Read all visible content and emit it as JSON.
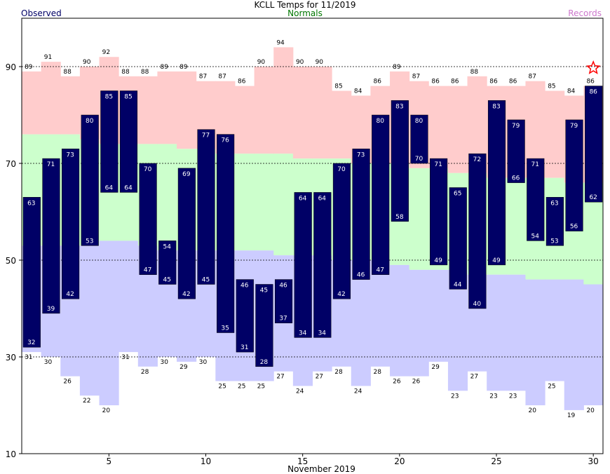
{
  "colors": {
    "observed": "#000066",
    "normals": "#007700",
    "records": "#cc77cc",
    "record_high_fill": "#ffcccc",
    "normal_fill": "#ccffcc",
    "record_low_fill": "#ccccff",
    "bar_label": "#ffffff",
    "star": "#ff0000"
  },
  "chart_data": {
    "type": "bar",
    "title": "KCLL Temps for 11/2019",
    "legend": {
      "observed": "Observed",
      "normals": "Normals",
      "records": "Records",
      "placement": "top"
    },
    "xlabel": "November 2019",
    "ylabel": "",
    "xlim": [
      0.5,
      30.5
    ],
    "ylim": [
      10,
      100
    ],
    "x_ticks": [
      5,
      10,
      15,
      20,
      25,
      30
    ],
    "y_ticks": [
      10,
      30,
      50,
      70,
      90
    ],
    "dashed_gridlines": [
      30,
      50,
      70,
      90
    ],
    "days": [
      1,
      2,
      3,
      4,
      5,
      6,
      7,
      8,
      9,
      10,
      11,
      12,
      13,
      14,
      15,
      16,
      17,
      18,
      19,
      20,
      21,
      22,
      23,
      24,
      25,
      26,
      27,
      28,
      29,
      30
    ],
    "observed_high": [
      63,
      71,
      73,
      80,
      85,
      85,
      70,
      54,
      69,
      77,
      76,
      46,
      45,
      46,
      64,
      64,
      70,
      73,
      80,
      83,
      80,
      71,
      65,
      72,
      83,
      79,
      71,
      63,
      79,
      86
    ],
    "observed_low": [
      32,
      39,
      42,
      53,
      64,
      64,
      47,
      45,
      42,
      45,
      35,
      31,
      28,
      37,
      34,
      34,
      42,
      46,
      47,
      58,
      70,
      49,
      44,
      40,
      49,
      66,
      54,
      53,
      56,
      62
    ],
    "normal_high": [
      76,
      76,
      76,
      75,
      74,
      74,
      74,
      74,
      73,
      73,
      72,
      72,
      72,
      72,
      71,
      71,
      71,
      70,
      70,
      70,
      69,
      69,
      68,
      68,
      67,
      67,
      67,
      67,
      66,
      66
    ],
    "normal_low": [
      53,
      53,
      53,
      53,
      54,
      54,
      53,
      52,
      52,
      52,
      52,
      52,
      52,
      51,
      51,
      51,
      50,
      50,
      50,
      49,
      48,
      48,
      48,
      47,
      47,
      47,
      46,
      46,
      46,
      45
    ],
    "record_high": [
      89,
      91,
      88,
      90,
      92,
      88,
      88,
      89,
      89,
      87,
      87,
      86,
      90,
      94,
      90,
      90,
      85,
      84,
      86,
      89,
      87,
      86,
      86,
      88,
      86,
      86,
      87,
      85,
      84,
      86
    ],
    "record_low": [
      31,
      30,
      26,
      22,
      20,
      31,
      28,
      30,
      29,
      30,
      25,
      25,
      25,
      27,
      24,
      27,
      28,
      24,
      28,
      26,
      26,
      29,
      23,
      27,
      23,
      23,
      20,
      25,
      19,
      20
    ],
    "record_high_marker_day": 30
  }
}
